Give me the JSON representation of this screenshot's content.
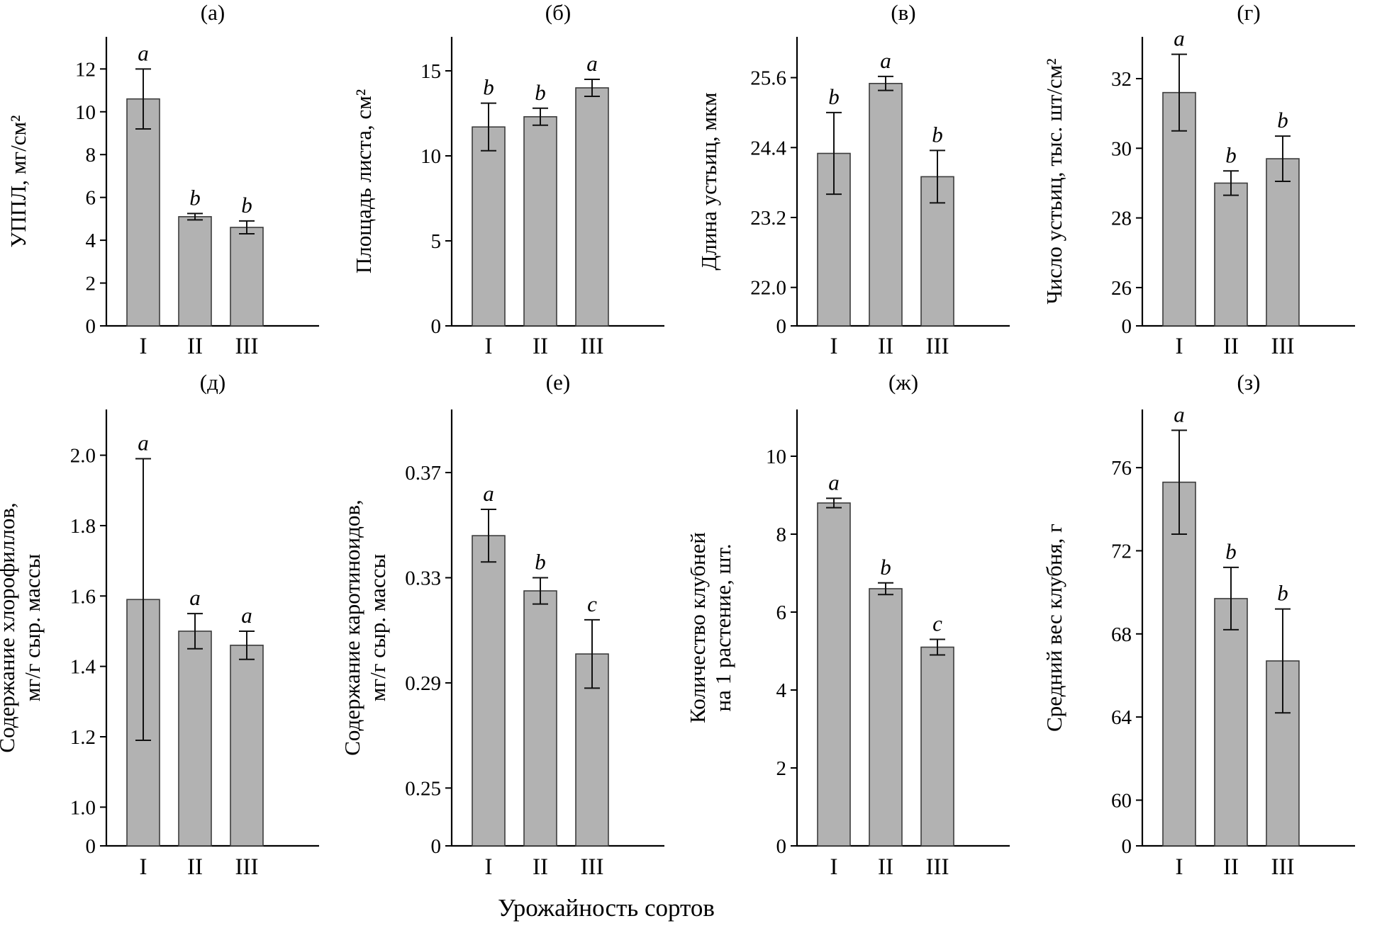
{
  "figure": {
    "xlabel": "Урожайность сортов",
    "bar_color": "#b2b2b2",
    "bar_stroke": "#3c3c3c",
    "axis_color": "#000000",
    "error_color": "#111111"
  },
  "chart_data": [
    {
      "type": "bar",
      "panel": "(а)",
      "ylabel_lines": [
        "УППЛ, мг/см²"
      ],
      "categories": [
        "I",
        "II",
        "III"
      ],
      "values": [
        10.6,
        5.1,
        4.6
      ],
      "errors": [
        1.4,
        0.15,
        0.3
      ],
      "sig_letters": [
        "a",
        "b",
        "b"
      ],
      "tick_labels": [
        "0",
        "2",
        "4",
        "6",
        "8",
        "10",
        "12"
      ],
      "tick_values": [
        0,
        2,
        4,
        6,
        8,
        10,
        12
      ],
      "broken_axis": false,
      "ylim": [
        0,
        13.5
      ],
      "legend": "none",
      "grid": false
    },
    {
      "type": "bar",
      "panel": "(б)",
      "ylabel_lines": [
        "Площадь листа, см²"
      ],
      "categories": [
        "I",
        "II",
        "III"
      ],
      "values": [
        11.7,
        12.3,
        14.0
      ],
      "errors": [
        1.4,
        0.5,
        0.5
      ],
      "sig_letters": [
        "b",
        "b",
        "a"
      ],
      "tick_labels": [
        "0",
        "5",
        "10",
        "15"
      ],
      "tick_values": [
        0,
        5,
        10,
        15
      ],
      "broken_axis": false,
      "ylim": [
        0,
        17
      ],
      "legend": "none",
      "grid": false
    },
    {
      "type": "bar",
      "panel": "(в)",
      "ylabel_lines": [
        "Длина устьиц, мкм"
      ],
      "categories": [
        "I",
        "II",
        "III"
      ],
      "values": [
        24.3,
        25.5,
        23.9
      ],
      "errors": [
        0.7,
        0.12,
        0.45
      ],
      "sig_letters": [
        "b",
        "a",
        "b"
      ],
      "tick_labels": [
        "0",
        "22.0",
        "23.2",
        "24.4",
        "25.6"
      ],
      "tick_values": [
        0,
        22.0,
        23.2,
        24.4,
        25.6
      ],
      "broken_axis": true,
      "ylim": [
        0,
        26.3
      ],
      "legend": "none",
      "grid": false
    },
    {
      "type": "bar",
      "panel": "(г)",
      "ylabel_lines": [
        "Число устьиц, тыс. шт/см²"
      ],
      "categories": [
        "I",
        "II",
        "III"
      ],
      "values": [
        31.6,
        29.0,
        29.7
      ],
      "errors": [
        1.1,
        0.35,
        0.65
      ],
      "sig_letters": [
        "a",
        "b",
        "b"
      ],
      "tick_labels": [
        "0",
        "26",
        "28",
        "30",
        "32"
      ],
      "tick_values": [
        0,
        26,
        28,
        30,
        32
      ],
      "broken_axis": true,
      "ylim": [
        0,
        33.2
      ],
      "legend": "none",
      "grid": false
    },
    {
      "type": "bar",
      "panel": "(д)",
      "ylabel_lines": [
        "Содержание хлорофиллов,",
        "мг/г сыр. массы"
      ],
      "categories": [
        "I",
        "II",
        "III"
      ],
      "values": [
        1.59,
        1.5,
        1.46
      ],
      "errors": [
        0.4,
        0.05,
        0.04
      ],
      "sig_letters": [
        "a",
        "a",
        "a"
      ],
      "tick_labels": [
        "0",
        "1.0",
        "1.2",
        "1.4",
        "1.6",
        "1.8",
        "2.0"
      ],
      "tick_values": [
        0,
        1.0,
        1.2,
        1.4,
        1.6,
        1.8,
        2.0
      ],
      "broken_axis": true,
      "ylim": [
        0,
        2.13
      ],
      "legend": "none",
      "grid": false
    },
    {
      "type": "bar",
      "panel": "(е)",
      "ylabel_lines": [
        "Содержание каротиноидов,",
        "мг/г сыр. массы"
      ],
      "categories": [
        "I",
        "II",
        "III"
      ],
      "values": [
        0.346,
        0.325,
        0.301
      ],
      "errors": [
        0.01,
        0.005,
        0.013
      ],
      "sig_letters": [
        "a",
        "b",
        "c"
      ],
      "tick_labels": [
        "0",
        "0.25",
        "0.29",
        "0.33",
        "0.37"
      ],
      "tick_values": [
        0,
        0.25,
        0.29,
        0.33,
        0.37
      ],
      "broken_axis": true,
      "ylim": [
        0,
        0.394
      ],
      "legend": "none",
      "grid": false
    },
    {
      "type": "bar",
      "panel": "(ж)",
      "ylabel_lines": [
        "Количество клубней",
        "на 1 растение, шт."
      ],
      "categories": [
        "I",
        "II",
        "III"
      ],
      "values": [
        8.8,
        6.6,
        5.1
      ],
      "errors": [
        0.12,
        0.15,
        0.2
      ],
      "sig_letters": [
        "a",
        "b",
        "c"
      ],
      "tick_labels": [
        "0",
        "2",
        "4",
        "6",
        "8",
        "10"
      ],
      "tick_values": [
        0,
        2,
        4,
        6,
        8,
        10
      ],
      "broken_axis": false,
      "ylim": [
        0,
        11.2
      ],
      "legend": "none",
      "grid": false
    },
    {
      "type": "bar",
      "panel": "(з)",
      "ylabel_lines": [
        "Средний вес клубня, г"
      ],
      "categories": [
        "I",
        "II",
        "III"
      ],
      "values": [
        75.3,
        69.7,
        66.7
      ],
      "errors": [
        2.5,
        1.5,
        2.5
      ],
      "sig_letters": [
        "a",
        "b",
        "b"
      ],
      "tick_labels": [
        "0",
        "60",
        "64",
        "68",
        "72",
        "76"
      ],
      "tick_values": [
        0,
        60,
        64,
        68,
        72,
        76
      ],
      "broken_axis": true,
      "ylim": [
        0,
        78.8
      ],
      "legend": "none",
      "grid": false
    }
  ]
}
